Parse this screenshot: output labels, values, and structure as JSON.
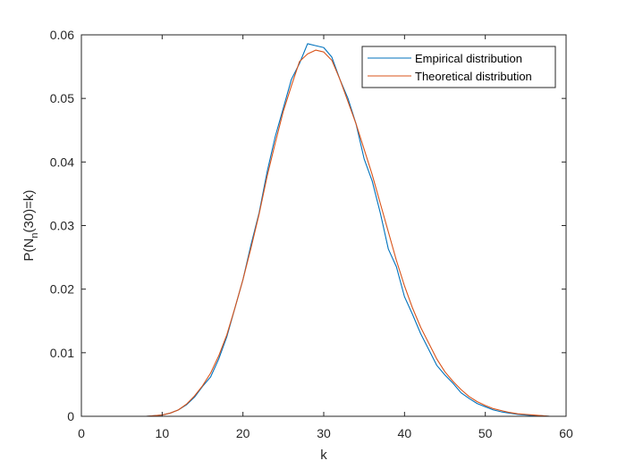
{
  "chart_data": {
    "type": "line",
    "title": "",
    "xlabel": "k",
    "ylabel": {
      "prefix": "P(N",
      "subscript": "n",
      "suffix": "(30)=k)"
    },
    "xlim": [
      0,
      60
    ],
    "ylim": [
      0,
      0.06
    ],
    "xticks": [
      0,
      10,
      20,
      30,
      40,
      50,
      60
    ],
    "yticks": [
      0,
      0.01,
      0.02,
      0.03,
      0.04,
      0.05,
      0.06
    ],
    "xtick_labels": [
      "0",
      "10",
      "20",
      "30",
      "40",
      "50",
      "60"
    ],
    "ytick_labels": [
      "0",
      "0.01",
      "0.02",
      "0.03",
      "0.04",
      "0.05",
      "0.06"
    ],
    "grid": false,
    "legend_position": "top-right",
    "series": [
      {
        "name": "Empirical distribution",
        "color": "#0072BD",
        "x": [
          0,
          1,
          2,
          3,
          4,
          5,
          6,
          7,
          8,
          9,
          10,
          11,
          12,
          13,
          14,
          15,
          16,
          17,
          18,
          19,
          20,
          21,
          22,
          23,
          24,
          25,
          26,
          27,
          28,
          29,
          30,
          31,
          32,
          33,
          34,
          35,
          36,
          37,
          38,
          39,
          40,
          41,
          42,
          43,
          44,
          45,
          46,
          47,
          48,
          49,
          50,
          51,
          52,
          53,
          54,
          55,
          56,
          57,
          58,
          59,
          60
        ],
        "y": [
          0,
          0,
          0,
          0,
          0,
          0,
          0,
          0,
          0,
          0.0001,
          0.0002,
          0.0005,
          0.001,
          0.0018,
          0.003,
          0.0047,
          0.0062,
          0.009,
          0.0125,
          0.017,
          0.0215,
          0.027,
          0.032,
          0.0385,
          0.044,
          0.0485,
          0.053,
          0.0555,
          0.0586,
          0.0583,
          0.058,
          0.0565,
          0.053,
          0.05,
          0.046,
          0.0405,
          0.037,
          0.032,
          0.0263,
          0.0235,
          0.0188,
          0.016,
          0.013,
          0.0105,
          0.008,
          0.0065,
          0.0052,
          0.0037,
          0.0028,
          0.002,
          0.0015,
          0.001,
          0.0007,
          0.0005,
          0.0003,
          0.0002,
          0.0001,
          0.0001,
          0,
          0,
          0
        ]
      },
      {
        "name": "Theoretical distribution",
        "color": "#D95319",
        "x": [
          0,
          1,
          2,
          3,
          4,
          5,
          6,
          7,
          8,
          9,
          10,
          11,
          12,
          13,
          14,
          15,
          16,
          17,
          18,
          19,
          20,
          21,
          22,
          23,
          24,
          25,
          26,
          27,
          28,
          29,
          30,
          31,
          32,
          33,
          34,
          35,
          36,
          37,
          38,
          39,
          40,
          41,
          42,
          43,
          44,
          45,
          46,
          47,
          48,
          49,
          50,
          51,
          52,
          53,
          54,
          55,
          56,
          57,
          58,
          59,
          60
        ],
        "y": [
          0,
          0,
          0,
          0,
          0,
          0,
          0,
          0,
          0,
          0.0001,
          0.0002,
          0.0005,
          0.001,
          0.0019,
          0.0032,
          0.0048,
          0.0068,
          0.0095,
          0.0128,
          0.017,
          0.0215,
          0.0265,
          0.0318,
          0.0378,
          0.043,
          0.048,
          0.052,
          0.0558,
          0.057,
          0.0576,
          0.0573,
          0.056,
          0.053,
          0.0495,
          0.046,
          0.042,
          0.038,
          0.0335,
          0.029,
          0.0245,
          0.0205,
          0.017,
          0.014,
          0.0115,
          0.009,
          0.007,
          0.0055,
          0.0042,
          0.0031,
          0.0023,
          0.0017,
          0.0012,
          0.0009,
          0.0006,
          0.0004,
          0.0003,
          0.0002,
          0.0001,
          0,
          0,
          0
        ]
      }
    ]
  }
}
